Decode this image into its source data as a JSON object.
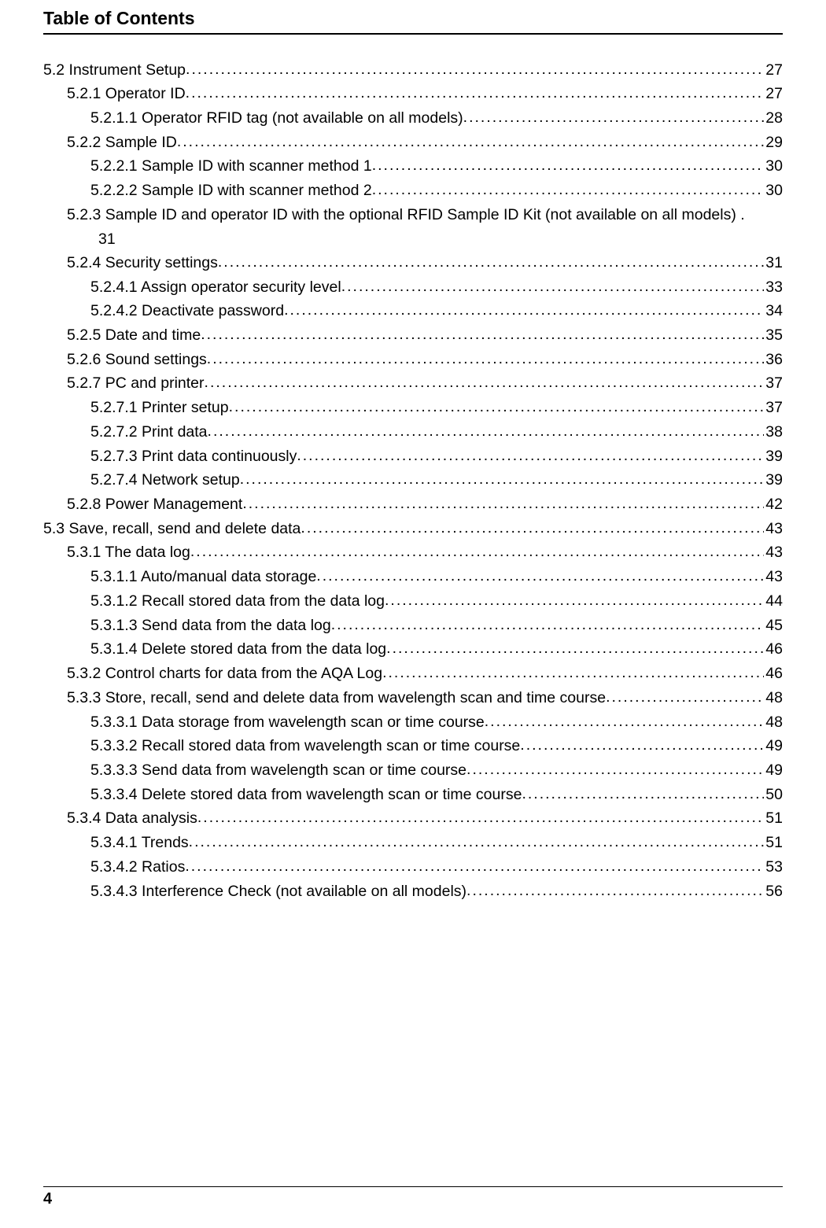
{
  "title": "Table of Contents",
  "page_number": "4",
  "entries": [
    {
      "indent": 0,
      "text": "5.2 Instrument Setup",
      "page": "27"
    },
    {
      "indent": 1,
      "text": "5.2.1 Operator ID",
      "page": "27"
    },
    {
      "indent": 2,
      "text": "5.2.1.1 Operator RFID tag (not available on all models)",
      "page": "28"
    },
    {
      "indent": 1,
      "text": "5.2.2 Sample ID",
      "page": "29"
    },
    {
      "indent": 2,
      "text": "5.2.2.1 Sample ID with scanner method 1",
      "page": "30"
    },
    {
      "indent": 2,
      "text": "5.2.2.2 Sample ID with scanner method 2",
      "page": "30"
    },
    {
      "indent": 1,
      "text": "5.2.3 Sample ID and operator ID with the optional RFID Sample ID Kit (not available on all models) .",
      "page": null,
      "continuation": "31"
    },
    {
      "indent": 1,
      "text": "5.2.4 Security settings",
      "page": "31"
    },
    {
      "indent": 2,
      "text": "5.2.4.1 Assign operator security level",
      "page": "33"
    },
    {
      "indent": 2,
      "text": "5.2.4.2 Deactivate password",
      "page": "34"
    },
    {
      "indent": 1,
      "text": "5.2.5 Date and time",
      "page": "35"
    },
    {
      "indent": 1,
      "text": "5.2.6 Sound settings",
      "page": "36"
    },
    {
      "indent": 1,
      "text": "5.2.7 PC and printer",
      "page": "37"
    },
    {
      "indent": 2,
      "text": "5.2.7.1 Printer setup",
      "page": "37"
    },
    {
      "indent": 2,
      "text": "5.2.7.2 Print data",
      "page": "38"
    },
    {
      "indent": 2,
      "text": "5.2.7.3 Print data continuously",
      "page": "39"
    },
    {
      "indent": 2,
      "text": "5.2.7.4 Network setup",
      "page": "39"
    },
    {
      "indent": 1,
      "text": "5.2.8 Power Management",
      "page": "42"
    },
    {
      "indent": 0,
      "text": "5.3 Save, recall, send and delete data",
      "page": "43"
    },
    {
      "indent": 1,
      "text": "5.3.1 The data log",
      "page": "43"
    },
    {
      "indent": 2,
      "text": "5.3.1.1 Auto/manual data storage",
      "page": "43"
    },
    {
      "indent": 2,
      "text": "5.3.1.2 Recall stored data from the data log",
      "page": "44"
    },
    {
      "indent": 2,
      "text": "5.3.1.3 Send data from the data log",
      "page": "45"
    },
    {
      "indent": 2,
      "text": "5.3.1.4 Delete stored data from the data log",
      "page": "46"
    },
    {
      "indent": 1,
      "text": "5.3.2 Control charts for data from the AQA Log",
      "page": "46"
    },
    {
      "indent": 1,
      "text": "5.3.3 Store, recall, send and delete data from wavelength scan and time course",
      "page": "48"
    },
    {
      "indent": 2,
      "text": "5.3.3.1 Data storage from wavelength scan or time course",
      "page": "48"
    },
    {
      "indent": 2,
      "text": "5.3.3.2 Recall stored data from wavelength scan or time course",
      "page": "49"
    },
    {
      "indent": 2,
      "text": "5.3.3.3 Send data from wavelength scan or time course",
      "page": "49"
    },
    {
      "indent": 2,
      "text": "5.3.3.4 Delete stored data from wavelength scan or time course",
      "page": "50"
    },
    {
      "indent": 1,
      "text": "5.3.4 Data analysis",
      "page": "51"
    },
    {
      "indent": 2,
      "text": "5.3.4.1 Trends",
      "page": "51"
    },
    {
      "indent": 2,
      "text": "5.3.4.2 Ratios",
      "page": "53"
    },
    {
      "indent": 2,
      "text": "5.3.4.3 Interference Check (not available on all models)",
      "page": "56"
    }
  ]
}
